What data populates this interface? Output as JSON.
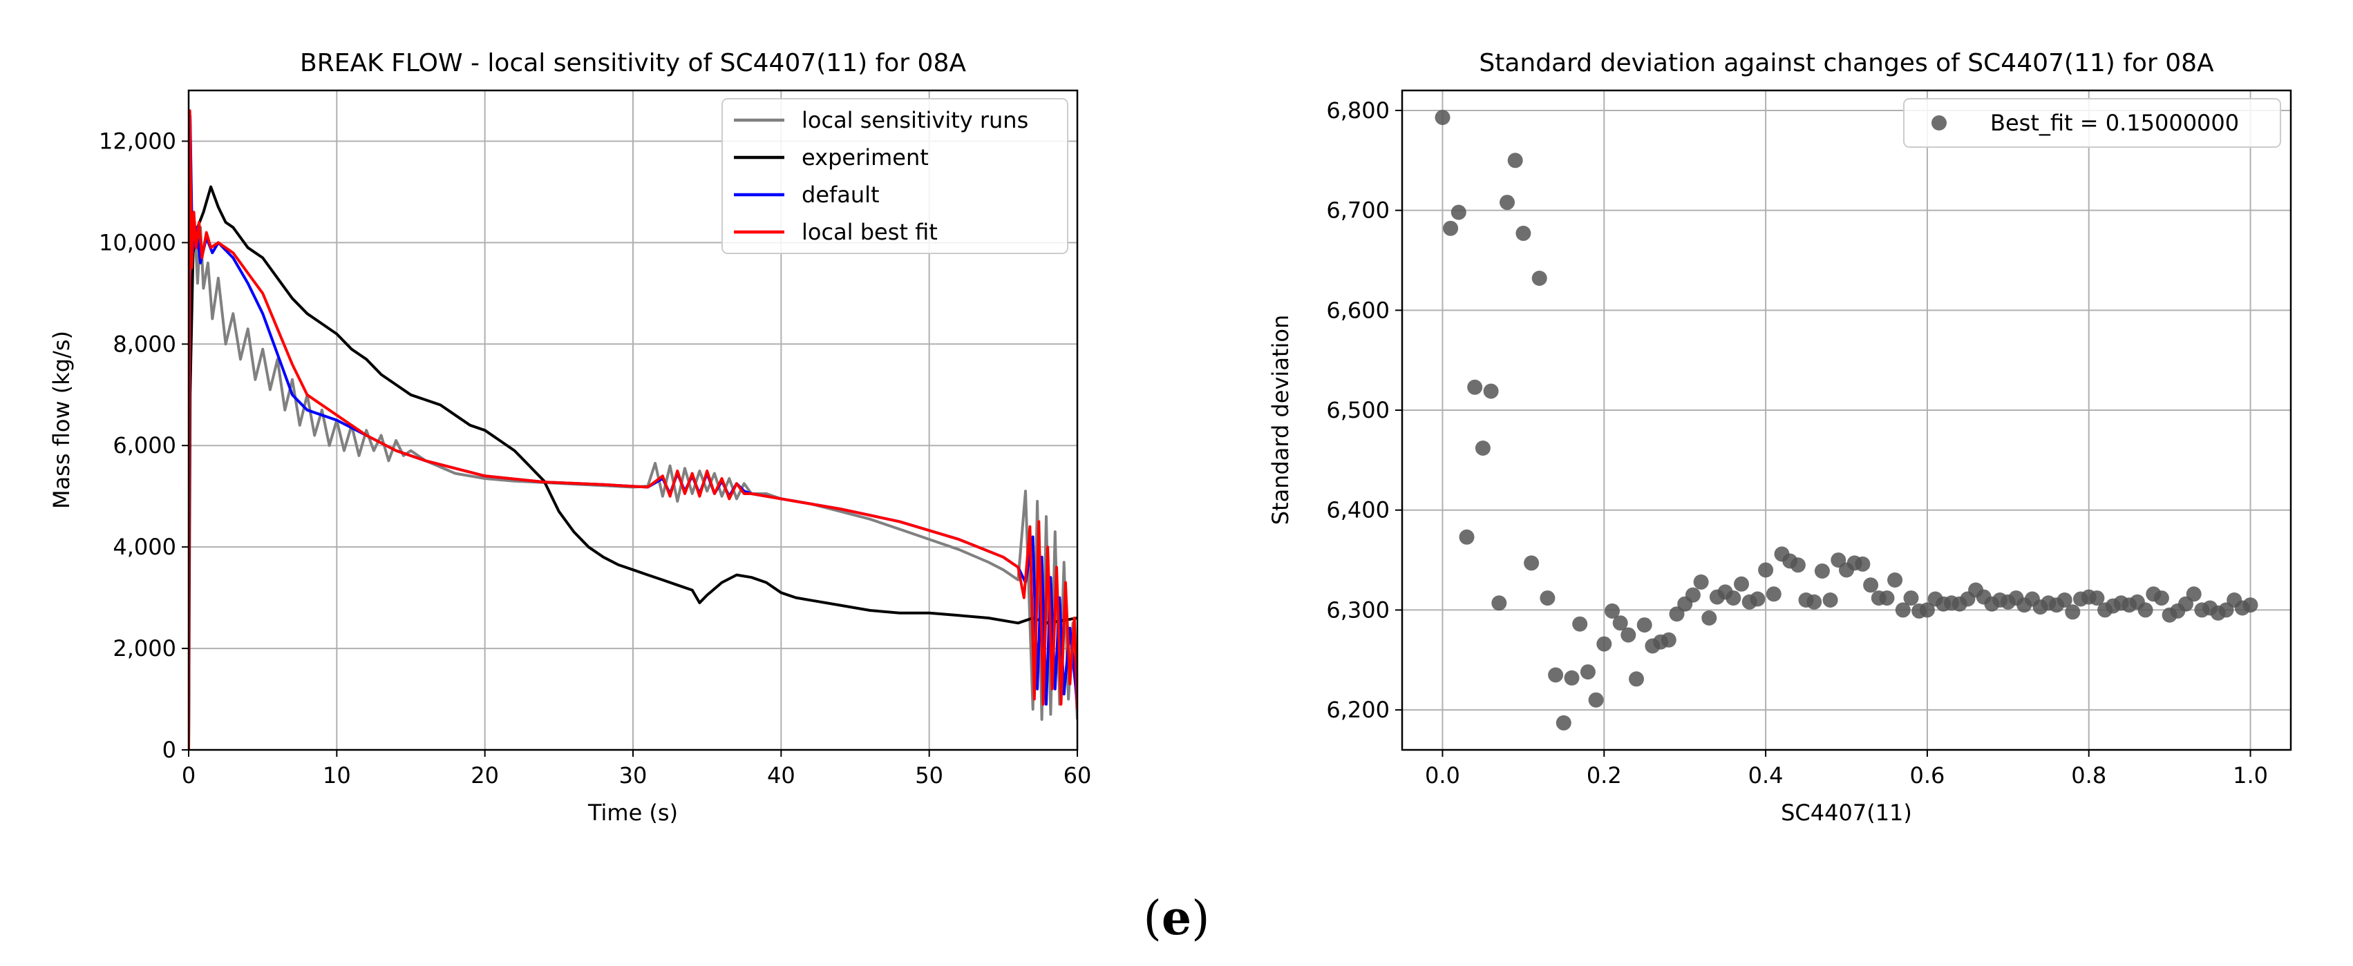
{
  "panel_label_open": "(",
  "panel_label_letter": "e",
  "panel_label_close": ")",
  "chart_data": [
    {
      "type": "line",
      "title": "BREAK FLOW - local sensitivity of SC4407(11) for 08A",
      "xlabel": "Time (s)",
      "ylabel": "Mass flow (kg/s)",
      "xlim": [
        0,
        60
      ],
      "ylim": [
        0,
        13000
      ],
      "xticks": [
        0,
        10,
        20,
        30,
        40,
        50,
        60
      ],
      "xtick_labels": [
        "0",
        "10",
        "20",
        "30",
        "40",
        "50",
        "60"
      ],
      "yticks": [
        0,
        2000,
        4000,
        6000,
        8000,
        10000,
        12000
      ],
      "ytick_labels": [
        "0",
        "2,000",
        "4,000",
        "6,000",
        "8,000",
        "10,000",
        "12,000"
      ],
      "grid": true,
      "legend_position": "top-right",
      "series": [
        {
          "name": "local sensitivity runs",
          "color": "#808080",
          "x": [
            0,
            0.1,
            0.25,
            0.4,
            0.6,
            0.8,
            1.0,
            1.3,
            1.6,
            2.0,
            2.5,
            3.0,
            3.5,
            4.0,
            4.5,
            5.0,
            5.5,
            6.0,
            6.5,
            7.0,
            7.5,
            8.0,
            8.5,
            9.0,
            9.5,
            10.0,
            10.5,
            11.0,
            11.5,
            12.0,
            12.5,
            13.0,
            13.5,
            14.0,
            14.5,
            15.0,
            16,
            18,
            20,
            22,
            24,
            26,
            28,
            30,
            31,
            31.5,
            32,
            32.5,
            33,
            33.5,
            34,
            34.5,
            35,
            35.5,
            36,
            36.5,
            37,
            37.5,
            38,
            39,
            40,
            42,
            44,
            46,
            48,
            50,
            52,
            54,
            55,
            56,
            56.5,
            57,
            57.3,
            57.6,
            57.9,
            58.2,
            58.5,
            58.8,
            59.1,
            59.4,
            59.7,
            60
          ],
          "values": [
            0,
            12400,
            9500,
            10400,
            9200,
            10300,
            9100,
            9600,
            8500,
            9300,
            8000,
            8600,
            7700,
            8300,
            7300,
            7900,
            7100,
            7700,
            6700,
            7300,
            6400,
            7000,
            6200,
            6700,
            6000,
            6500,
            5900,
            6400,
            5800,
            6300,
            5900,
            6200,
            5700,
            6100,
            5800,
            5900,
            5700,
            5450,
            5350,
            5300,
            5270,
            5240,
            5210,
            5180,
            5200,
            5650,
            5000,
            5600,
            4900,
            5550,
            5050,
            5500,
            5100,
            5450,
            5000,
            5350,
            4950,
            5250,
            5050,
            5050,
            4950,
            4850,
            4700,
            4550,
            4350,
            4150,
            3950,
            3700,
            3550,
            3350,
            5100,
            800,
            4900,
            600,
            4600,
            700,
            4300,
            900,
            3700,
            1000,
            2500,
            600
          ]
        },
        {
          "name": "experiment",
          "color": "#000000",
          "x": [
            0,
            0.1,
            0.3,
            0.6,
            1.0,
            1.5,
            2.0,
            2.5,
            3,
            3.5,
            4,
            5,
            6,
            7,
            8,
            9,
            10,
            11,
            12,
            13,
            14,
            15,
            16,
            17,
            18,
            19,
            20,
            21,
            22,
            23,
            24,
            25,
            26,
            27,
            28,
            29,
            30,
            31,
            32,
            33,
            34,
            34.5,
            35,
            36,
            37,
            38,
            39,
            40,
            41,
            42,
            44,
            46,
            48,
            50,
            52,
            54,
            56,
            57,
            58,
            59,
            60
          ],
          "values": [
            0,
            7000,
            9800,
            10300,
            10600,
            11100,
            10700,
            10400,
            10300,
            10100,
            9900,
            9700,
            9300,
            8900,
            8600,
            8400,
            8200,
            7900,
            7700,
            7400,
            7200,
            7000,
            6900,
            6800,
            6600,
            6400,
            6300,
            6100,
            5900,
            5600,
            5300,
            4700,
            4300,
            4000,
            3800,
            3650,
            3550,
            3450,
            3350,
            3250,
            3150,
            2900,
            3050,
            3300,
            3450,
            3400,
            3300,
            3100,
            3000,
            2950,
            2850,
            2750,
            2700,
            2700,
            2650,
            2600,
            2500,
            2600,
            2500,
            2550,
            2600
          ]
        },
        {
          "name": "default",
          "color": "#0000ff",
          "x": [
            0,
            0.1,
            0.25,
            0.5,
            0.8,
            1.2,
            1.6,
            2,
            3,
            4,
            5,
            6,
            7,
            8,
            10,
            12,
            14,
            16,
            20,
            24,
            28,
            31,
            32,
            32.5,
            33,
            33.5,
            34,
            34.5,
            35,
            35.5,
            36,
            36.5,
            37,
            37.5,
            38,
            40,
            44,
            48,
            52,
            55,
            56,
            56.5,
            57,
            57.3,
            57.6,
            57.9,
            58.2,
            58.5,
            58.8,
            59.1,
            59.5,
            60
          ],
          "values": [
            0,
            12500,
            9800,
            10300,
            9600,
            10100,
            9800,
            10000,
            9700,
            9200,
            8600,
            7800,
            7000,
            6700,
            6500,
            6200,
            5900,
            5700,
            5400,
            5280,
            5230,
            5180,
            5350,
            5050,
            5450,
            5100,
            5400,
            5050,
            5450,
            5050,
            5300,
            5000,
            5250,
            5100,
            5050,
            4950,
            4750,
            4500,
            4150,
            3800,
            3600,
            3300,
            4200,
            1200,
            3800,
            900,
            3400,
            1200,
            3000,
            1100,
            2400,
            900
          ]
        },
        {
          "name": "local best fit",
          "color": "#ff0000",
          "x": [
            0,
            0.08,
            0.2,
            0.35,
            0.5,
            0.7,
            0.9,
            1.2,
            1.5,
            2,
            3,
            4,
            5,
            6,
            7,
            8,
            10,
            12,
            14,
            16,
            20,
            24,
            28,
            31,
            32,
            32.5,
            33,
            33.5,
            34,
            34.5,
            35,
            35.5,
            36,
            36.5,
            37,
            37.5,
            38,
            40,
            44,
            48,
            52,
            55,
            56,
            56.4,
            56.8,
            57.1,
            57.4,
            57.7,
            58,
            58.3,
            58.6,
            58.9,
            59.2,
            59.5,
            59.8,
            60
          ],
          "values": [
            0,
            12600,
            9500,
            10600,
            9900,
            10400,
            9700,
            10200,
            9900,
            10000,
            9800,
            9400,
            9000,
            8300,
            7600,
            7000,
            6600,
            6200,
            5900,
            5700,
            5400,
            5280,
            5230,
            5180,
            5400,
            5000,
            5500,
            5050,
            5450,
            5000,
            5500,
            5050,
            5350,
            4950,
            5250,
            5050,
            5050,
            4950,
            4750,
            4500,
            4150,
            3800,
            3600,
            3000,
            4400,
            1000,
            4500,
            900,
            4000,
            1200,
            3600,
            900,
            3300,
            1300,
            2600,
            800
          ]
        }
      ]
    },
    {
      "type": "scatter",
      "title": "Standard deviation against changes of SC4407(11) for 08A",
      "xlabel": "SC4407(11)",
      "ylabel": "Standard deviation",
      "xlim": [
        -0.05,
        1.05
      ],
      "ylim": [
        6160,
        6820
      ],
      "xticks": [
        0.0,
        0.2,
        0.4,
        0.6,
        0.8,
        1.0
      ],
      "xtick_labels": [
        "0.0",
        "0.2",
        "0.4",
        "0.6",
        "0.8",
        "1.0"
      ],
      "yticks": [
        6200,
        6300,
        6400,
        6500,
        6600,
        6700,
        6800
      ],
      "ytick_labels": [
        "6,200",
        "6,300",
        "6,400",
        "6,500",
        "6,600",
        "6,700",
        "6,800"
      ],
      "grid": true,
      "legend_position": "top-right",
      "series": [
        {
          "name": "Best_fit = 0.15000000",
          "color": "#555555",
          "x": [
            0.0,
            0.01,
            0.02,
            0.03,
            0.04,
            0.05,
            0.06,
            0.07,
            0.08,
            0.09,
            0.1,
            0.11,
            0.12,
            0.13,
            0.14,
            0.15,
            0.16,
            0.17,
            0.18,
            0.19,
            0.2,
            0.21,
            0.22,
            0.23,
            0.24,
            0.25,
            0.26,
            0.27,
            0.28,
            0.29,
            0.3,
            0.31,
            0.32,
            0.33,
            0.34,
            0.35,
            0.36,
            0.37,
            0.38,
            0.39,
            0.4,
            0.41,
            0.42,
            0.43,
            0.44,
            0.45,
            0.46,
            0.47,
            0.48,
            0.49,
            0.5,
            0.51,
            0.52,
            0.53,
            0.54,
            0.55,
            0.56,
            0.57,
            0.58,
            0.59,
            0.6,
            0.61,
            0.62,
            0.63,
            0.64,
            0.65,
            0.66,
            0.67,
            0.68,
            0.69,
            0.7,
            0.71,
            0.72,
            0.73,
            0.74,
            0.75,
            0.76,
            0.77,
            0.78,
            0.79,
            0.8,
            0.81,
            0.82,
            0.83,
            0.84,
            0.85,
            0.86,
            0.87,
            0.88,
            0.89,
            0.9,
            0.91,
            0.92,
            0.93,
            0.94,
            0.95,
            0.96,
            0.97,
            0.98,
            0.99,
            1.0
          ],
          "values": [
            6793,
            6682,
            6698,
            6373,
            6523,
            6462,
            6519,
            6307,
            6708,
            6750,
            6677,
            6347,
            6632,
            6312,
            6235,
            6187,
            6232,
            6286,
            6238,
            6210,
            6266,
            6299,
            6287,
            6275,
            6231,
            6285,
            6264,
            6268,
            6270,
            6296,
            6306,
            6315,
            6328,
            6292,
            6313,
            6318,
            6312,
            6326,
            6308,
            6311,
            6340,
            6316,
            6356,
            6349,
            6345,
            6310,
            6308,
            6339,
            6310,
            6350,
            6340,
            6347,
            6346,
            6325,
            6312,
            6312,
            6330,
            6300,
            6312,
            6299,
            6300,
            6311,
            6306,
            6307,
            6306,
            6311,
            6320,
            6313,
            6306,
            6310,
            6308,
            6312,
            6305,
            6311,
            6303,
            6307,
            6305,
            6310,
            6298,
            6311,
            6313,
            6312,
            6300,
            6304,
            6307,
            6305,
            6308,
            6300,
            6316,
            6312,
            6295,
            6299,
            6306,
            6316,
            6300,
            6302,
            6297,
            6300,
            6310,
            6302,
            6305
          ]
        }
      ]
    }
  ]
}
